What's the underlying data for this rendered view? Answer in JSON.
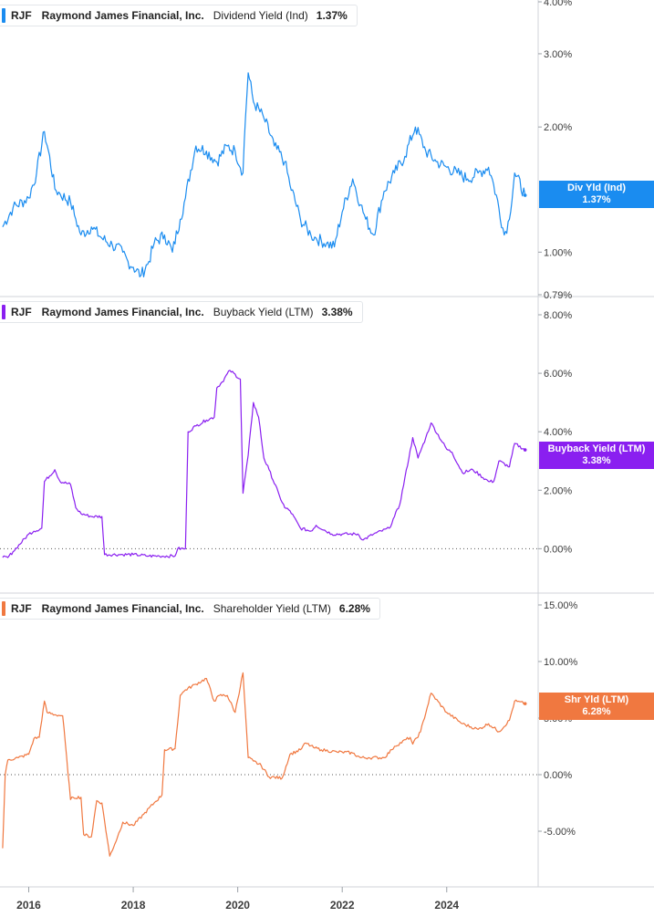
{
  "chart_data": [
    {
      "type": "line",
      "ticker": "RJF",
      "company": "Raymond James Financial, Inc.",
      "metric": "Dividend Yield (Ind)",
      "last_value": "1.37%",
      "tag_line1": "Div Yld (Ind)",
      "tag_line2": "1.37%",
      "color": "#1a8cf0",
      "ylim": [
        0.79,
        4.0
      ],
      "yscale": "log",
      "yticks": [
        4.0,
        3.0,
        2.0,
        1.0,
        0.79
      ],
      "ytick_labels": [
        "4.00%",
        "3.00%",
        "2.00%",
        "1.00%",
        "0.79%"
      ],
      "zero_line": false,
      "x": [
        2015.5,
        2015.7,
        2016.0,
        2016.15,
        2016.3,
        2016.5,
        2016.6,
        2016.8,
        2016.9,
        2017.0,
        2017.2,
        2017.4,
        2017.6,
        2017.8,
        2017.9,
        2018.0,
        2018.15,
        2018.3,
        2018.4,
        2018.6,
        2018.75,
        2018.9,
        2019.0,
        2019.2,
        2019.4,
        2019.6,
        2019.8,
        2019.95,
        2020.1,
        2020.2,
        2020.3,
        2020.5,
        2020.7,
        2020.9,
        2021.0,
        2021.2,
        2021.4,
        2021.5,
        2021.7,
        2021.85,
        2022.0,
        2022.2,
        2022.35,
        2022.45,
        2022.6,
        2022.8,
        2023.0,
        2023.2,
        2023.4,
        2023.6,
        2023.8,
        2024.0,
        2024.2,
        2024.4,
        2024.6,
        2024.8,
        2024.9,
        2025.1,
        2025.2,
        2025.3,
        2025.5
      ],
      "values": [
        1.15,
        1.28,
        1.35,
        1.55,
        1.95,
        1.42,
        1.38,
        1.32,
        1.2,
        1.1,
        1.15,
        1.08,
        1.04,
        1.0,
        0.95,
        0.92,
        0.88,
        0.95,
        1.05,
        1.1,
        1.0,
        1.2,
        1.35,
        1.8,
        1.75,
        1.65,
        1.8,
        1.75,
        1.55,
        2.7,
        2.3,
        2.1,
        1.8,
        1.65,
        1.45,
        1.2,
        1.1,
        1.08,
        1.05,
        1.03,
        1.25,
        1.5,
        1.3,
        1.2,
        1.1,
        1.4,
        1.55,
        1.7,
        2.0,
        1.75,
        1.65,
        1.6,
        1.55,
        1.5,
        1.55,
        1.6,
        1.45,
        1.1,
        1.2,
        1.55,
        1.37
      ]
    },
    {
      "type": "line",
      "ticker": "RJF",
      "company": "Raymond James Financial, Inc.",
      "metric": "Buyback Yield (LTM)",
      "last_value": "3.38%",
      "tag_line1": "Buyback Yield (LTM)",
      "tag_line2": "3.38%",
      "color": "#8a1ff0",
      "ylim": [
        -0.8,
        8.0
      ],
      "yscale": "linear",
      "yticks": [
        8.0,
        6.0,
        4.0,
        2.0,
        0.0
      ],
      "ytick_labels": [
        "8.00%",
        "6.00%",
        "4.00%",
        "2.00%",
        "0.00%"
      ],
      "zero_line": true,
      "x": [
        2015.5,
        2015.6,
        2015.7,
        2016.0,
        2016.1,
        2016.25,
        2016.3,
        2016.5,
        2016.6,
        2016.8,
        2016.9,
        2017.0,
        2017.2,
        2017.4,
        2017.45,
        2017.8,
        2018.0,
        2018.3,
        2018.5,
        2018.8,
        2018.85,
        2019.0,
        2019.05,
        2019.2,
        2019.4,
        2019.55,
        2019.6,
        2019.7,
        2019.85,
        2020.05,
        2020.1,
        2020.2,
        2020.3,
        2020.4,
        2020.5,
        2020.6,
        2020.8,
        2020.9,
        2021.0,
        2021.2,
        2021.4,
        2021.5,
        2021.8,
        2022.0,
        2022.3,
        2022.4,
        2022.6,
        2022.9,
        2023.0,
        2023.1,
        2023.35,
        2023.45,
        2023.6,
        2023.7,
        2024.0,
        2024.1,
        2024.3,
        2024.5,
        2024.8,
        2024.9,
        2025.0,
        2025.2,
        2025.3,
        2025.5
      ],
      "values": [
        -0.3,
        -0.3,
        -0.1,
        0.5,
        0.6,
        0.7,
        2.3,
        2.7,
        2.3,
        2.2,
        1.4,
        1.2,
        1.1,
        1.1,
        -0.2,
        -0.2,
        -0.2,
        -0.25,
        -0.25,
        -0.25,
        0.0,
        0.0,
        4.0,
        4.2,
        4.4,
        4.5,
        5.5,
        5.7,
        6.1,
        5.8,
        1.9,
        3.2,
        5.0,
        4.5,
        3.1,
        2.7,
        1.8,
        1.4,
        1.3,
        0.7,
        0.6,
        0.8,
        0.5,
        0.5,
        0.5,
        0.3,
        0.5,
        0.7,
        1.1,
        1.5,
        3.8,
        3.1,
        3.8,
        4.3,
        3.4,
        3.3,
        2.6,
        2.7,
        2.3,
        2.3,
        3.0,
        2.8,
        3.6,
        3.38
      ]
    },
    {
      "type": "line",
      "ticker": "RJF",
      "company": "Raymond James Financial, Inc.",
      "metric": "Shareholder Yield (LTM)",
      "last_value": "6.28%",
      "tag_line1": "Shr Yld (LTM)",
      "tag_line2": "6.28%",
      "color": "#f07840",
      "ylim": [
        -7.5,
        15.0
      ],
      "yscale": "linear",
      "yticks": [
        15.0,
        10.0,
        5.0,
        0.0,
        -5.0
      ],
      "ytick_labels": [
        "15.00%",
        "10.00%",
        "5.00%",
        "0.00%",
        "-5.00%"
      ],
      "zero_line": true,
      "x": [
        2015.5,
        2015.55,
        2015.6,
        2015.8,
        2016.0,
        2016.1,
        2016.2,
        2016.3,
        2016.35,
        2016.5,
        2016.65,
        2016.8,
        2016.85,
        2017.0,
        2017.05,
        2017.2,
        2017.3,
        2017.4,
        2017.55,
        2017.7,
        2017.8,
        2018.0,
        2018.2,
        2018.4,
        2018.55,
        2018.6,
        2018.8,
        2018.9,
        2019.0,
        2019.2,
        2019.4,
        2019.55,
        2019.65,
        2019.8,
        2019.95,
        2020.1,
        2020.2,
        2020.3,
        2020.45,
        2020.6,
        2020.85,
        2021.0,
        2021.2,
        2021.3,
        2021.45,
        2021.6,
        2021.9,
        2022.0,
        2022.2,
        2022.35,
        2022.5,
        2022.8,
        2022.95,
        2023.0,
        2023.3,
        2023.35,
        2023.5,
        2023.7,
        2024.0,
        2024.3,
        2024.6,
        2024.8,
        2025.0,
        2025.2,
        2025.3,
        2025.5
      ],
      "values": [
        -6.5,
        0.0,
        1.3,
        1.5,
        1.8,
        3.2,
        3.3,
        6.5,
        5.5,
        5.3,
        5.2,
        -2.2,
        -2.0,
        -2.0,
        -5.3,
        -5.5,
        -2.3,
        -2.5,
        -7.2,
        -5.5,
        -4.2,
        -4.5,
        -3.5,
        -2.5,
        -1.8,
        2.2,
        2.3,
        7.0,
        7.5,
        8.0,
        8.5,
        6.5,
        7.0,
        7.0,
        5.5,
        9.0,
        1.5,
        1.2,
        0.8,
        -0.2,
        -0.3,
        1.8,
        2.2,
        2.8,
        2.4,
        2.2,
        2.0,
        2.0,
        1.9,
        1.5,
        1.5,
        1.5,
        2.2,
        2.5,
        3.3,
        2.7,
        3.8,
        7.2,
        5.5,
        4.5,
        4.0,
        4.5,
        3.8,
        4.8,
        6.5,
        6.28
      ]
    }
  ],
  "x_axis": {
    "range": [
      2015.45,
      2025.75
    ],
    "ticks": [
      2016,
      2018,
      2020,
      2022,
      2024
    ],
    "labels": [
      "2016",
      "2018",
      "2020",
      "2022",
      "2024"
    ]
  }
}
